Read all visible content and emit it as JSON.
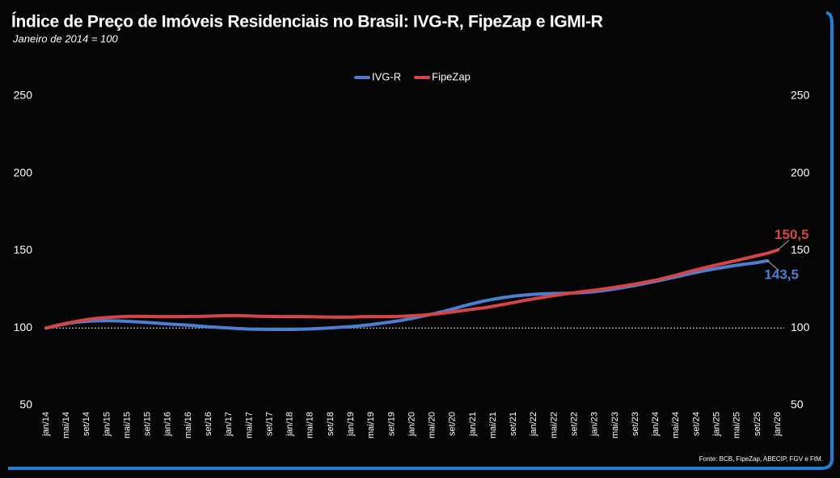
{
  "chart_data": {
    "type": "line",
    "title": "Índice de Preço de Imóveis Residenciais no Brasil: IVG-R, FipeZap e IGMI-R",
    "subtitle": "Janeiro de 2014 = 100",
    "source": "Fonte: BCB, FipeZap, ABECIP, FGV e FtM.",
    "categories": [
      "jan/14",
      null,
      "mai/14",
      null,
      "set/14",
      null,
      "jan/15",
      null,
      "mai/15",
      null,
      "set/15",
      null,
      "jan/16",
      null,
      "mai/16",
      null,
      "set/16",
      null,
      "jan/17",
      null,
      "mai/17",
      null,
      "set/17",
      null,
      "jan/18",
      null,
      "mai/18",
      null,
      "set/18",
      null,
      "jan/19",
      null,
      "mai/19",
      null,
      "set/19",
      null,
      "jan/20",
      null,
      "mai/20",
      null,
      "set/20",
      null,
      "jan/21",
      null,
      "mai/21",
      null,
      "set/21",
      null,
      "jan/22",
      null,
      "mai/22",
      null,
      "set/22",
      null,
      "jan/23",
      null,
      "mai/23",
      null,
      "set/23",
      null,
      "jan/24",
      null,
      "mai/24",
      null,
      "set/24",
      null,
      "jan/25",
      null,
      "mai/25",
      null,
      "set/25",
      null,
      "jan/26"
    ],
    "series": [
      {
        "name": "IVG-R",
        "color": "#4a7fd4",
        "values": [
          100,
          101.5,
          102.8,
          103.8,
          104.3,
          104.6,
          104.7,
          104.6,
          104.3,
          104.0,
          103.6,
          103.1,
          102.6,
          102.2,
          101.8,
          101.3,
          100.8,
          100.4,
          100.0,
          99.6,
          99.3,
          99.2,
          99.1,
          99.1,
          99.1,
          99.2,
          99.4,
          99.7,
          100.1,
          100.5,
          100.9,
          101.5,
          102.2,
          103.1,
          104.0,
          105.0,
          106.2,
          107.6,
          109.0,
          110.6,
          112.3,
          114.1,
          115.8,
          117.3,
          118.6,
          119.7,
          120.6,
          121.3,
          121.8,
          122.1,
          122.3,
          122.5,
          122.7,
          123.0,
          123.5,
          124.3,
          125.3,
          126.4,
          127.6,
          128.9,
          130.2,
          131.6,
          133.1,
          134.6,
          136.0,
          137.3,
          138.5,
          139.6,
          140.6,
          141.5,
          142.4,
          143.5,
          null
        ],
        "value_labels": [
          null,
          null,
          null,
          null,
          null,
          null,
          null,
          null,
          null,
          null,
          null,
          null,
          null,
          null,
          null,
          null,
          null,
          null,
          null,
          null,
          null,
          null,
          null,
          null,
          null,
          null,
          null,
          null,
          null,
          null,
          null,
          null,
          null,
          null,
          null,
          null,
          null,
          null,
          null,
          null,
          null,
          null,
          null,
          null,
          null,
          null,
          null,
          null,
          null,
          null,
          null,
          null,
          null,
          null,
          null,
          null,
          null,
          null,
          null,
          null,
          null,
          null,
          null,
          null,
          null,
          null,
          null,
          null,
          null,
          null,
          null,
          "143,5",
          null
        ]
      },
      {
        "name": "FipeZap",
        "color": "#d64545",
        "values": [
          100,
          101.7,
          103.0,
          104.3,
          105.4,
          106.3,
          106.8,
          107.2,
          107.5,
          107.6,
          107.5,
          107.4,
          107.4,
          107.4,
          107.5,
          107.5,
          107.7,
          107.9,
          108.1,
          108.0,
          107.8,
          107.6,
          107.5,
          107.4,
          107.4,
          107.4,
          107.3,
          107.2,
          107.1,
          107.1,
          107.1,
          107.3,
          107.4,
          107.4,
          107.4,
          107.6,
          107.9,
          108.3,
          108.9,
          109.6,
          110.4,
          111.3,
          112.2,
          113.0,
          114.0,
          115.3,
          116.5,
          117.8,
          118.9,
          120.0,
          121.0,
          122.0,
          122.9,
          123.7,
          124.5,
          125.4,
          126.4,
          127.4,
          128.5,
          129.7,
          131.0,
          132.5,
          134.2,
          136.0,
          137.7,
          139.3,
          140.8,
          142.3,
          143.8,
          145.3,
          146.8,
          148.4,
          150.5
        ],
        "value_labels": [
          null,
          null,
          null,
          null,
          null,
          null,
          null,
          null,
          null,
          null,
          null,
          null,
          null,
          null,
          null,
          null,
          null,
          null,
          null,
          null,
          null,
          null,
          null,
          null,
          null,
          null,
          null,
          null,
          null,
          null,
          null,
          null,
          null,
          null,
          null,
          null,
          null,
          null,
          null,
          null,
          null,
          null,
          null,
          null,
          null,
          null,
          null,
          null,
          null,
          null,
          null,
          null,
          null,
          null,
          null,
          null,
          null,
          null,
          null,
          null,
          null,
          null,
          null,
          null,
          null,
          null,
          null,
          null,
          null,
          null,
          null,
          null,
          "150,5"
        ]
      }
    ],
    "ylim": [
      50,
      250
    ],
    "yticks": [
      50,
      100,
      150,
      200,
      250
    ],
    "y2lim": [
      50,
      250
    ],
    "y2ticks": [
      50,
      100,
      150,
      200,
      250
    ],
    "reference_line": 100,
    "grid": false,
    "legend": "top"
  }
}
